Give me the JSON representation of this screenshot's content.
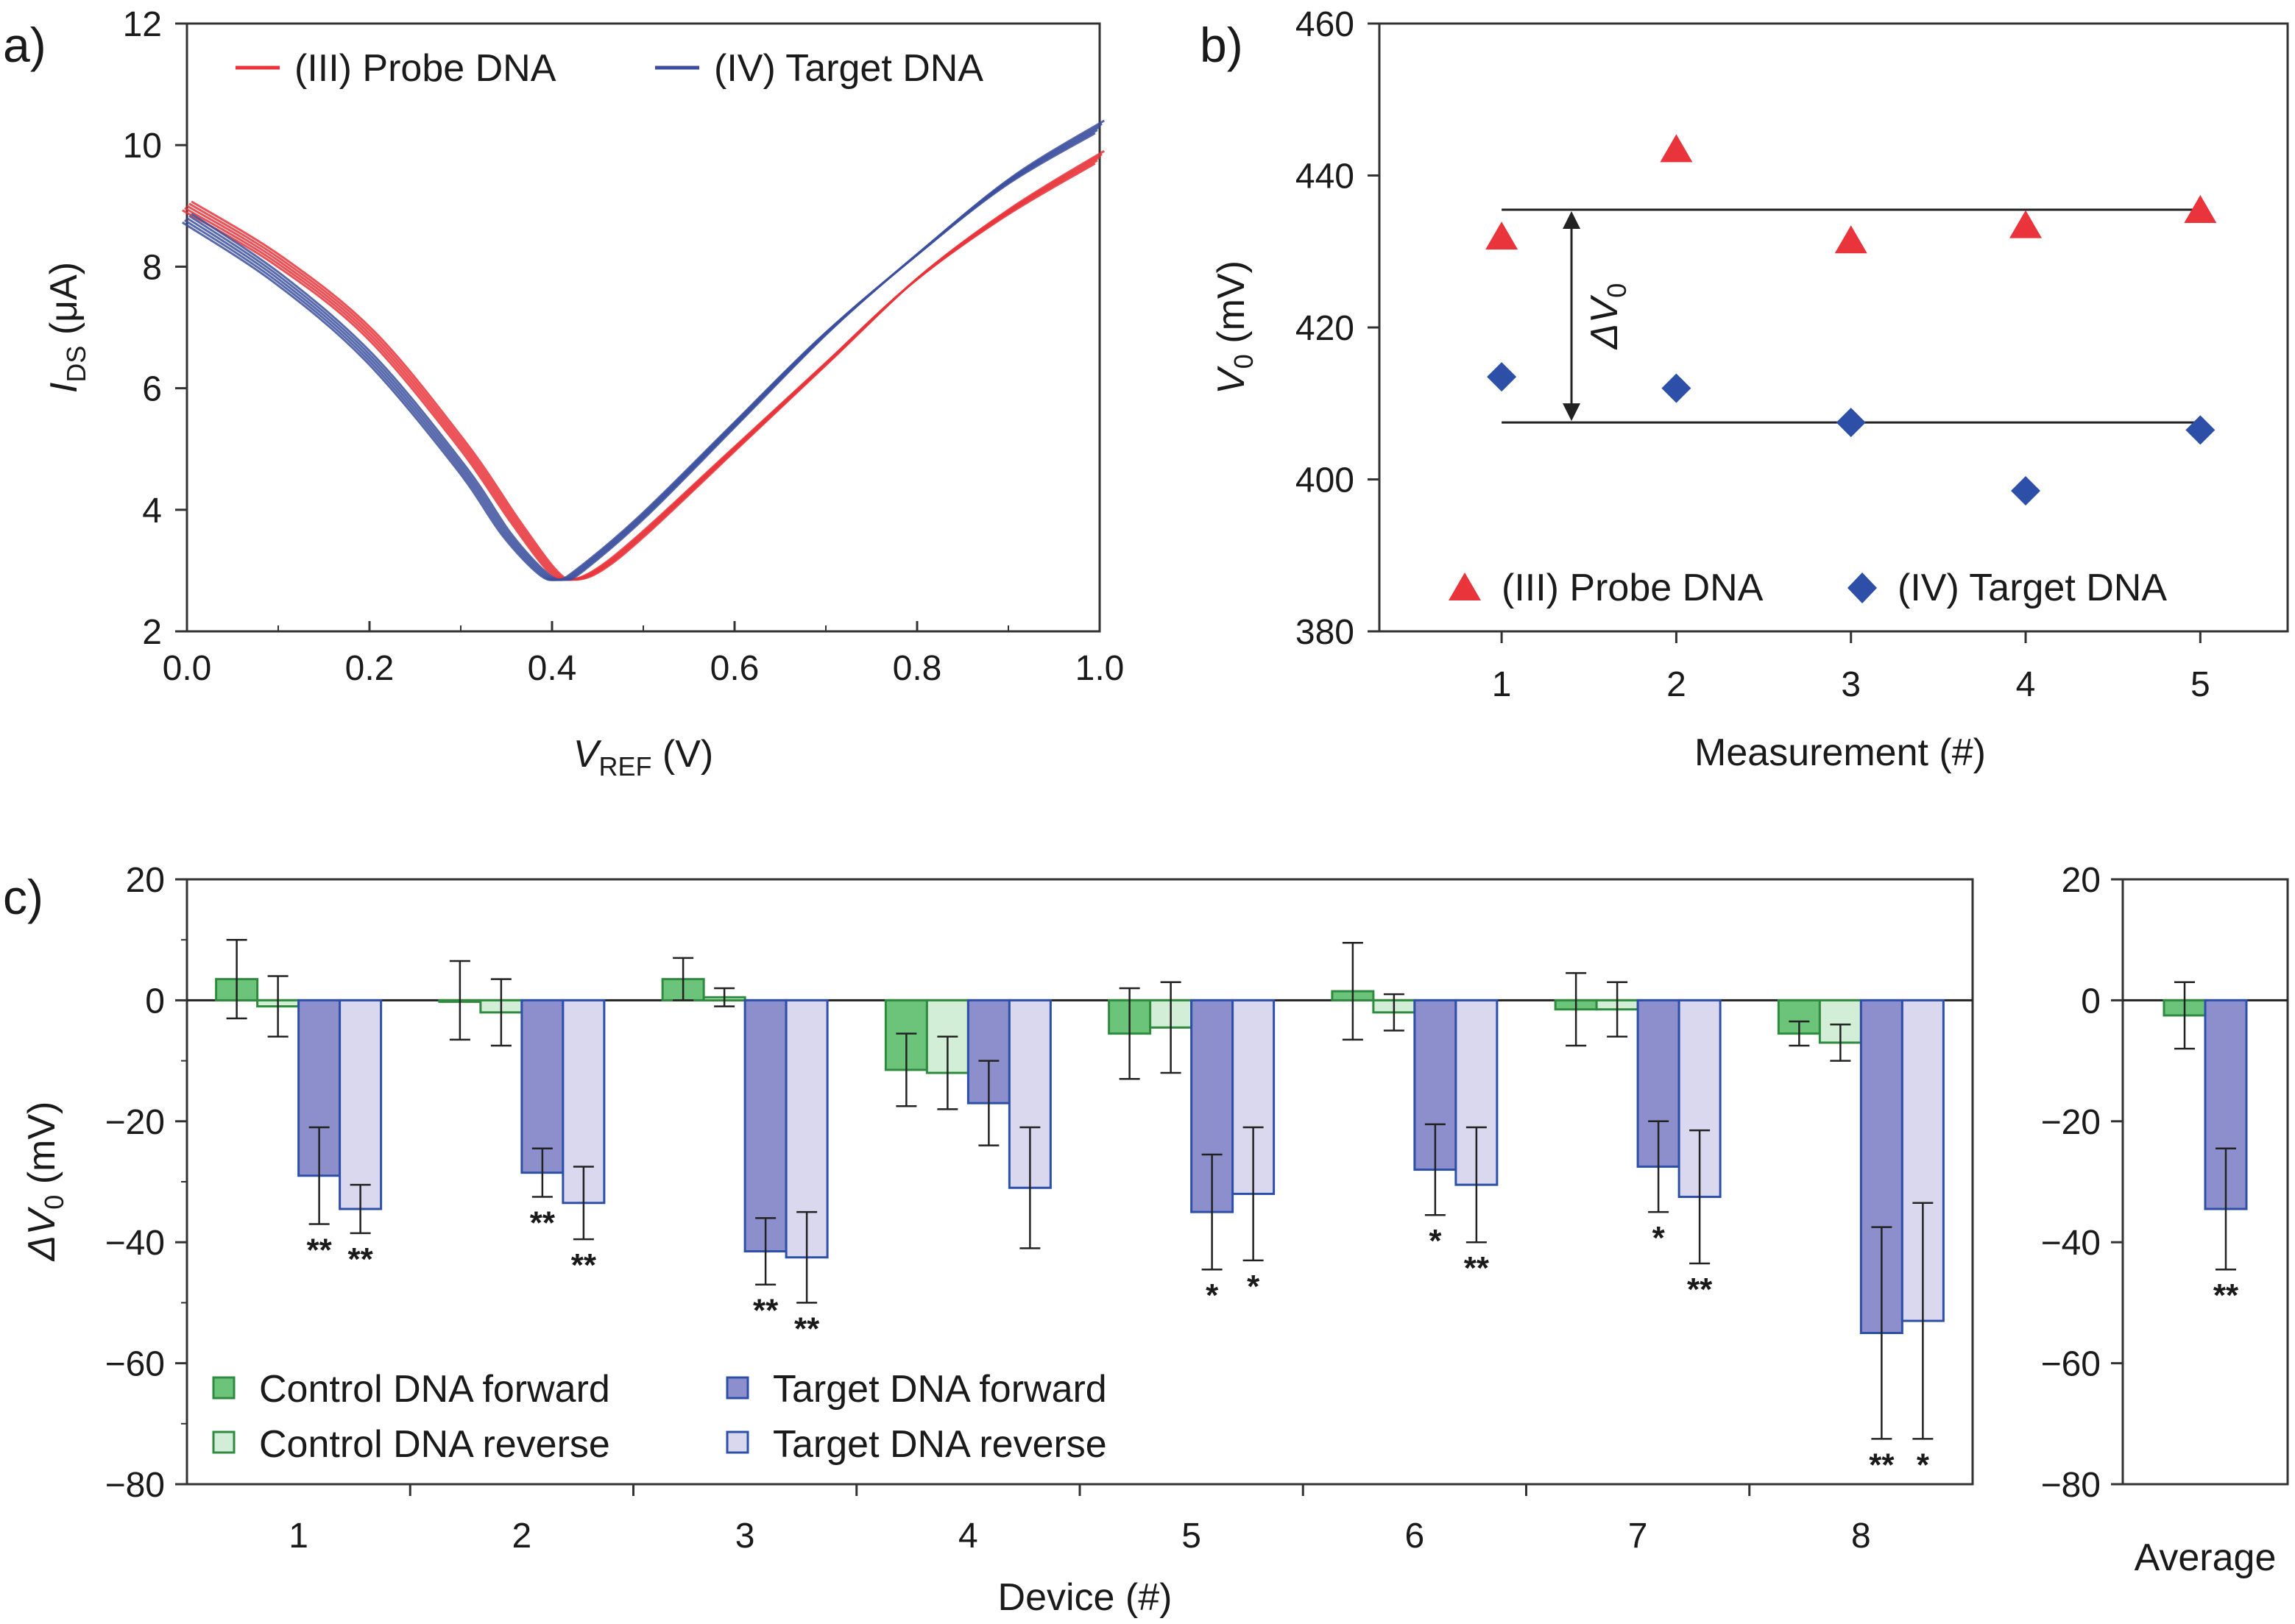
{
  "chart_data": [
    {
      "type": "line",
      "panel": "a)",
      "title": "",
      "xlabel": {
        "main": "V",
        "sub": "REF",
        "unit": " (V)"
      },
      "ylabel": {
        "main": "I",
        "sub": "DS",
        "unit": " (μA)"
      },
      "xlim": [
        0.0,
        1.0
      ],
      "ylim": [
        2,
        12
      ],
      "xticks": [
        "0.0",
        "0.2",
        "0.4",
        "0.6",
        "0.8",
        "1.0"
      ],
      "yticks": [
        "2",
        "4",
        "6",
        "8",
        "10",
        "12"
      ],
      "legend": [
        {
          "label": "(III) Probe DNA",
          "color": "#e8343a"
        },
        {
          "label": "(IV) Target DNA",
          "color": "#3b4f9e"
        }
      ],
      "series": [
        {
          "name": "(III) Probe DNA",
          "color": "#e8343a",
          "curves": 5,
          "x": [
            0.0,
            0.1,
            0.2,
            0.3,
            0.36,
            0.4,
            0.42,
            0.45,
            0.5,
            0.6,
            0.7,
            0.8,
            0.9,
            1.0
          ],
          "y": [
            9.0,
            8.1,
            6.9,
            5.1,
            3.8,
            3.0,
            2.85,
            3.0,
            3.6,
            5.0,
            6.4,
            7.8,
            8.9,
            9.8
          ]
        },
        {
          "name": "(IV) Target DNA",
          "color": "#3b4f9e",
          "curves": 5,
          "x": [
            0.0,
            0.1,
            0.2,
            0.3,
            0.35,
            0.39,
            0.41,
            0.43,
            0.5,
            0.6,
            0.7,
            0.8,
            0.9,
            1.0
          ],
          "y": [
            8.8,
            7.8,
            6.5,
            4.7,
            3.6,
            2.95,
            2.85,
            3.0,
            3.9,
            5.4,
            6.9,
            8.2,
            9.4,
            10.3
          ]
        }
      ]
    },
    {
      "type": "scatter",
      "panel": "b)",
      "title": "",
      "xlabel": "Measurement (#)",
      "ylabel": {
        "main": "V",
        "sub": "0",
        "unit": " (mV)"
      },
      "xlim": [
        0.3,
        5.5
      ],
      "ylim": [
        380,
        460
      ],
      "xticks": [
        "1",
        "2",
        "3",
        "4",
        "5"
      ],
      "yticks": [
        "380",
        "400",
        "420",
        "440",
        "460"
      ],
      "annotation": {
        "main": "ΔV",
        "sub": "0",
        "upper_level": 435.5,
        "lower_level": 407.5
      },
      "legend": [
        {
          "label": "(III) Probe DNA",
          "color": "#e8343a",
          "marker": "triangle"
        },
        {
          "label": "(IV) Target DNA",
          "color": "#2d4fa8",
          "marker": "diamond"
        }
      ],
      "series": [
        {
          "name": "(III) Probe DNA",
          "marker": "triangle",
          "color": "#e8343a",
          "x": [
            1,
            2,
            3,
            4,
            5
          ],
          "y": [
            432,
            443.5,
            431.5,
            433.5,
            435.5
          ]
        },
        {
          "name": "(IV) Target DNA",
          "marker": "diamond",
          "color": "#2d4fa8",
          "x": [
            1,
            2,
            3,
            4,
            5
          ],
          "y": [
            413.5,
            412,
            407.5,
            398.5,
            406.5
          ]
        }
      ]
    },
    {
      "type": "bar",
      "panel": "c)",
      "title": "",
      "xlabel": "Device (#)",
      "ylabel": {
        "main": "ΔV",
        "sub": "0",
        "unit": " (mV)"
      },
      "ylim": [
        -80,
        20
      ],
      "yticks": [
        "−80",
        "−60",
        "−40",
        "−20",
        "0",
        "20"
      ],
      "categories": [
        "1",
        "2",
        "3",
        "4",
        "5",
        "6",
        "7",
        "8"
      ],
      "series": [
        {
          "name": "Control DNA forward",
          "fill": "#6cc47a",
          "edge": "#2e8b3e",
          "values": [
            3.5,
            0,
            3.5,
            -11.5,
            -5.5,
            1.5,
            -1.5,
            -5.5
          ],
          "errors": [
            6.5,
            6.5,
            3.5,
            6,
            7.5,
            8,
            6,
            2
          ],
          "stars": [
            "",
            "",
            "",
            "",
            "",
            "",
            "",
            ""
          ]
        },
        {
          "name": "Control DNA reverse",
          "fill": "#d2eed6",
          "edge": "#2e8b3e",
          "values": [
            -1,
            -2,
            0.5,
            -12,
            -4.5,
            -2,
            -1.5,
            -7
          ],
          "errors": [
            5,
            5.5,
            1.5,
            6,
            7.5,
            3,
            4.5,
            3
          ],
          "stars": [
            "",
            "",
            "",
            "",
            "",
            "",
            "",
            ""
          ]
        },
        {
          "name": "Target DNA forward",
          "fill": "#8c8fcb",
          "edge": "#2d4fa8",
          "values": [
            -29,
            -28.5,
            -41.5,
            -17,
            -35,
            -28,
            -27.5,
            -55
          ],
          "errors": [
            8,
            4,
            5.5,
            7,
            9.5,
            7.5,
            7.5,
            17.5
          ],
          "stars": [
            "**",
            "**",
            "**",
            "",
            "*",
            "*",
            "*",
            "**"
          ]
        },
        {
          "name": "Target DNA reverse",
          "fill": "#dad8ee",
          "edge": "#2d4fa8",
          "values": [
            -34.5,
            -33.5,
            -42.5,
            -31,
            -32,
            -30.5,
            -32.5,
            -53
          ],
          "errors": [
            4,
            6,
            7.5,
            10,
            11,
            9.5,
            11,
            19.5
          ],
          "stars": [
            "**",
            "**",
            "**",
            "",
            "*",
            "**",
            "**",
            "*"
          ]
        }
      ],
      "average": {
        "label": "Average",
        "ylim": [
          -80,
          20
        ],
        "yticks": [
          "−80",
          "−60",
          "−40",
          "−20",
          "0",
          "20"
        ],
        "bars": [
          {
            "series": "Control DNA forward",
            "value": -2.5,
            "error": 5.5,
            "star": ""
          },
          {
            "series": "Target DNA forward",
            "value": -34.5,
            "error": 10,
            "star": "**"
          }
        ]
      },
      "legend": [
        {
          "label": "Control DNA forward",
          "fill": "#6cc47a",
          "edge": "#2e8b3e"
        },
        {
          "label": "Target DNA forward",
          "fill": "#8c8fcb",
          "edge": "#2d4fa8"
        },
        {
          "label": "Control DNA reverse",
          "fill": "#d2eed6",
          "edge": "#2e8b3e"
        },
        {
          "label": "Target DNA reverse",
          "fill": "#dad8ee",
          "edge": "#2d4fa8"
        }
      ]
    }
  ]
}
